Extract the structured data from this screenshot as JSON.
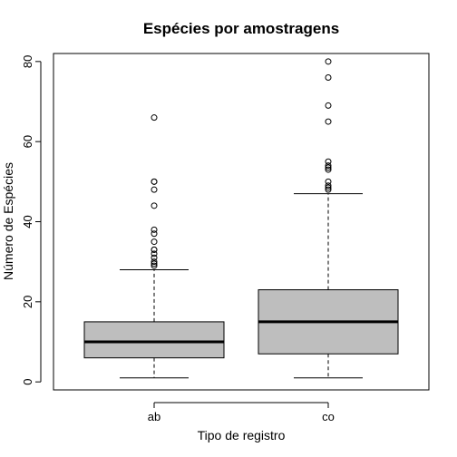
{
  "chart_data": {
    "type": "boxplot",
    "title": "Espécies por amostragens",
    "xlabel": "Tipo de registro",
    "ylabel": "Número de Espécies",
    "ylim": [
      -2,
      82
    ],
    "yticks": [
      0,
      20,
      40,
      60,
      80
    ],
    "grid": false,
    "categories": [
      "ab",
      "co"
    ],
    "boxes": [
      {
        "name": "ab",
        "whisker_low": 1,
        "q1": 6,
        "median": 10,
        "q3": 15,
        "whisker_high": 28,
        "outliers": [
          29,
          29.5,
          30,
          31,
          32,
          33,
          33,
          35,
          37,
          38,
          44,
          48,
          50,
          50,
          66
        ]
      },
      {
        "name": "co",
        "whisker_low": 1,
        "q1": 7,
        "median": 15,
        "q3": 23,
        "whisker_high": 47,
        "outliers": [
          48,
          48.5,
          49,
          50,
          53,
          53.5,
          54,
          55,
          65,
          69,
          76,
          80
        ]
      }
    ],
    "colors": {
      "box_fill": "#bebebe",
      "stroke": "#000000"
    }
  }
}
